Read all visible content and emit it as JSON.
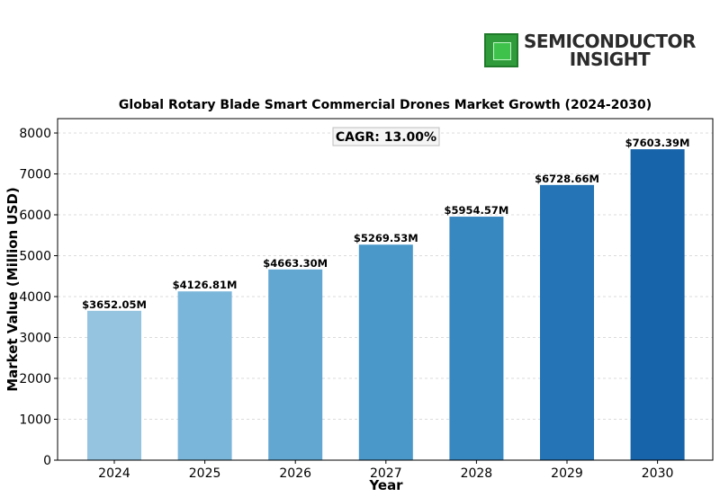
{
  "logo": {
    "line1": "SEMICONDUCTOR",
    "line2": "INSIGHT",
    "icon": "chip-icon"
  },
  "chart_data": {
    "type": "bar",
    "title": "Global Rotary Blade Smart Commercial Drones Market Growth (2024-2030)",
    "xlabel": "Year",
    "ylabel": "Market Value (Million USD)",
    "categories": [
      "2024",
      "2025",
      "2026",
      "2027",
      "2028",
      "2029",
      "2030"
    ],
    "values": [
      3652.05,
      4126.81,
      4663.3,
      5269.53,
      5954.57,
      6728.66,
      7603.39
    ],
    "data_labels": [
      "$3652.05M",
      "$4126.81M",
      "$4663.30M",
      "$5269.53M",
      "$5954.57M",
      "$6728.66M",
      "$7603.39M"
    ],
    "ylim": [
      0,
      8000
    ],
    "yticks": [
      0,
      1000,
      2000,
      3000,
      4000,
      5000,
      6000,
      7000,
      8000
    ],
    "grid": true,
    "annotation": "CAGR: 13.00%",
    "colors": [
      "#94c4df",
      "#7ab6d9",
      "#62a7d2",
      "#4a98c9",
      "#3787c0",
      "#2474b6",
      "#1764ab"
    ]
  }
}
